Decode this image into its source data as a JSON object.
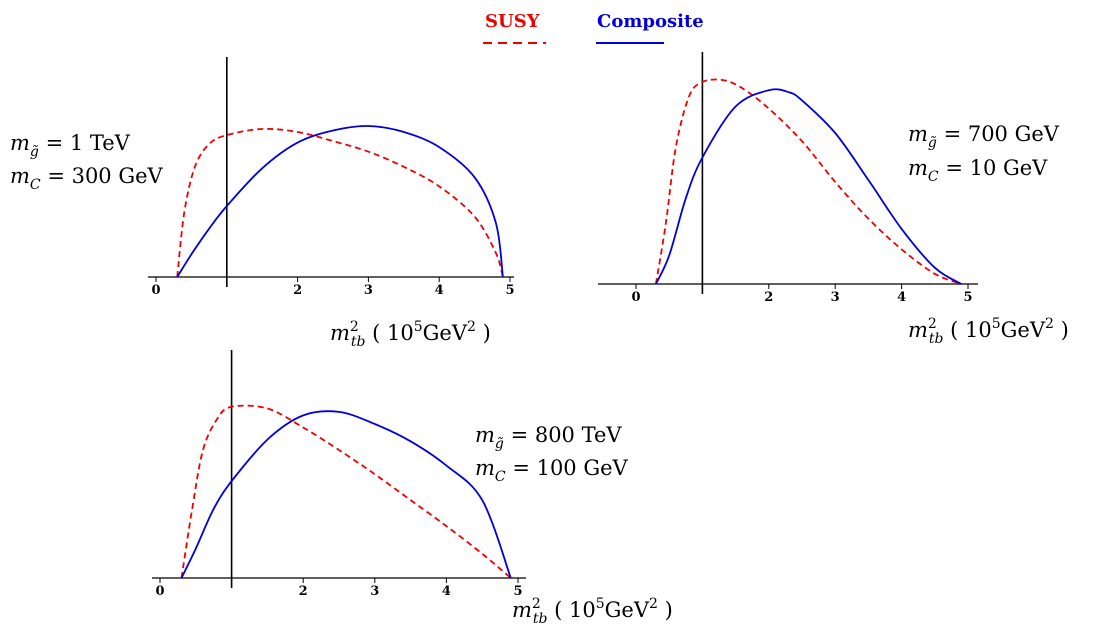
{
  "legend": {
    "entries": [
      {
        "label": "SUSY",
        "color": "#ee0000",
        "dash": "dashed"
      },
      {
        "label": "Composite",
        "color": "#0000dd",
        "dash": "solid"
      }
    ]
  },
  "chart_data": [
    {
      "type": "line",
      "params": [
        "m_g̃ = 1 TeV",
        "m_C = 300 GeV"
      ],
      "xlabel": "m_tb^2 ( 10^5 GeV^2 )",
      "x_ticks": [
        "0",
        "2",
        "3",
        "4",
        "5"
      ],
      "xlim": [
        0,
        5
      ],
      "ylim": [
        0,
        1.0
      ],
      "vline_x": 1.0,
      "series": [
        {
          "name": "SUSY",
          "color": "#ee0000",
          "dash": "dashed",
          "x": [
            0.3,
            0.4,
            0.55,
            0.75,
            1.0,
            1.5,
            2.0,
            2.5,
            3.0,
            3.5,
            4.0,
            4.5,
            4.8,
            4.9
          ],
          "y": [
            0.0,
            0.43,
            0.73,
            0.88,
            0.94,
            0.98,
            0.96,
            0.9,
            0.83,
            0.73,
            0.6,
            0.4,
            0.16,
            0.0
          ]
        },
        {
          "name": "Composite",
          "color": "#0000dd",
          "dash": "solid",
          "x": [
            0.3,
            0.5,
            0.75,
            1.0,
            1.5,
            2.0,
            2.5,
            3.0,
            3.5,
            4.0,
            4.5,
            4.8,
            4.9
          ],
          "y": [
            0.0,
            0.15,
            0.32,
            0.47,
            0.72,
            0.89,
            0.97,
            1.0,
            0.96,
            0.86,
            0.66,
            0.36,
            0.0
          ]
        }
      ]
    },
    {
      "type": "line",
      "params": [
        "m_g̃ = 700 GeV",
        "m_C = 10 GeV"
      ],
      "xlabel": "m_tb^2 ( 10^5 GeV^2 )",
      "x_ticks": [
        "0",
        "2",
        "3",
        "4",
        "5"
      ],
      "xlim": [
        0,
        5
      ],
      "ylim": [
        0,
        1.0
      ],
      "vline_x": 1.0,
      "series": [
        {
          "name": "SUSY",
          "color": "#ee0000",
          "dash": "dashed",
          "x": [
            0.3,
            0.45,
            0.6,
            0.8,
            1.0,
            1.3,
            1.6,
            2.0,
            2.5,
            3.0,
            3.5,
            4.0,
            4.5,
            4.9
          ],
          "y": [
            0.0,
            0.3,
            0.67,
            0.92,
            0.99,
            1.0,
            0.96,
            0.86,
            0.7,
            0.5,
            0.32,
            0.17,
            0.05,
            0.0
          ]
        },
        {
          "name": "Composite",
          "color": "#0000dd",
          "dash": "solid",
          "x": [
            0.3,
            0.5,
            0.75,
            1.0,
            1.5,
            2.0,
            2.3,
            2.5,
            3.0,
            3.5,
            4.0,
            4.5,
            4.9
          ],
          "y": [
            0.0,
            0.14,
            0.42,
            0.62,
            0.87,
            0.95,
            0.94,
            0.9,
            0.74,
            0.51,
            0.27,
            0.08,
            0.0
          ]
        }
      ]
    },
    {
      "type": "line",
      "params": [
        "m_g̃ = 800 TeV",
        "m_C = 100 GeV"
      ],
      "xlabel": "m_tb^2 ( 10^5 GeV^2 )",
      "x_ticks": [
        "0",
        "2",
        "3",
        "4",
        "5"
      ],
      "xlim": [
        0,
        5
      ],
      "ylim": [
        0,
        1.0
      ],
      "vline_x": 1.0,
      "series": [
        {
          "name": "SUSY",
          "color": "#ee0000",
          "dash": "dashed",
          "x": [
            0.3,
            0.45,
            0.6,
            0.8,
            1.0,
            1.5,
            2.0,
            2.5,
            3.0,
            3.5,
            4.0,
            4.5,
            4.9
          ],
          "y": [
            0.0,
            0.4,
            0.74,
            0.92,
            0.99,
            0.98,
            0.87,
            0.74,
            0.6,
            0.45,
            0.3,
            0.14,
            0.0
          ]
        },
        {
          "name": "Composite",
          "color": "#0000dd",
          "dash": "solid",
          "x": [
            0.3,
            0.5,
            0.75,
            1.0,
            1.5,
            2.0,
            2.5,
            3.0,
            3.5,
            4.0,
            4.5,
            4.9
          ],
          "y": [
            0.0,
            0.17,
            0.4,
            0.56,
            0.8,
            0.94,
            0.96,
            0.89,
            0.79,
            0.65,
            0.45,
            0.0
          ]
        }
      ]
    }
  ]
}
